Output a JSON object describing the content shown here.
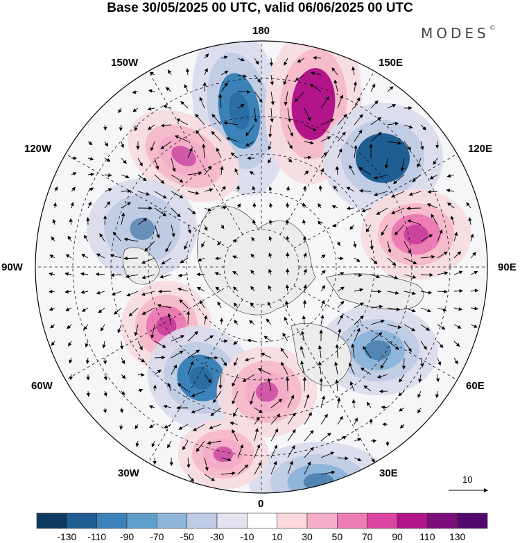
{
  "title": "Base 30/05/2025 00 UTC, valid 06/06/2025 00 UTC",
  "brand": {
    "name": "MODES",
    "mark": "©"
  },
  "longitude_labels": {
    "lon_180": "180",
    "lon_150w": "150W",
    "lon_150e": "150E",
    "lon_120w": "120W",
    "lon_120e": "120E",
    "lon_90w": "90W",
    "lon_90e": "90E",
    "lon_60w": "60W",
    "lon_60e": "60E",
    "lon_30w": "30W",
    "lon_30e": "30E",
    "lon_0": "0"
  },
  "reference_vector": {
    "label": "10"
  },
  "colorbar": {
    "tick_labels": [
      "-130",
      "-110",
      "-90",
      "-70",
      "-50",
      "-30",
      "-10",
      "10",
      "30",
      "50",
      "70",
      "90",
      "110",
      "130"
    ],
    "colors": [
      "#0d3a5e",
      "#1f5e92",
      "#3b82b8",
      "#5f9fcc",
      "#8fb6da",
      "#bfcbe4",
      "#e4e4f1",
      "#ffffff",
      "#fbd9dd",
      "#f5aeca",
      "#ec7cb4",
      "#db44a0",
      "#b2148a",
      "#7c0d7b",
      "#52086e"
    ]
  },
  "anomaly_centers": [
    {
      "sign": "neg",
      "value": -90,
      "color": "#3b82b8"
    },
    {
      "sign": "pos",
      "value": 110,
      "color": "#b2148a"
    },
    {
      "sign": "neg",
      "value": -110,
      "color": "#1f5e92"
    },
    {
      "sign": "pos",
      "value": 70,
      "color": "#ec7cb4"
    },
    {
      "sign": "pos",
      "value": 50,
      "color": "#f5aeca"
    },
    {
      "sign": "neg",
      "value": -30,
      "color": "#bfcbe4"
    },
    {
      "sign": "pos",
      "value": 70,
      "color": "#ec7cb4"
    },
    {
      "sign": "neg",
      "value": -90,
      "color": "#3b82b8"
    },
    {
      "sign": "pos",
      "value": 50,
      "color": "#f5aeca"
    },
    {
      "sign": "neg",
      "value": -50,
      "color": "#8fb6da"
    },
    {
      "sign": "neg",
      "value": -50,
      "color": "#8fb6da"
    },
    {
      "sign": "pos",
      "value": 50,
      "color": "#f5aeca"
    }
  ]
}
